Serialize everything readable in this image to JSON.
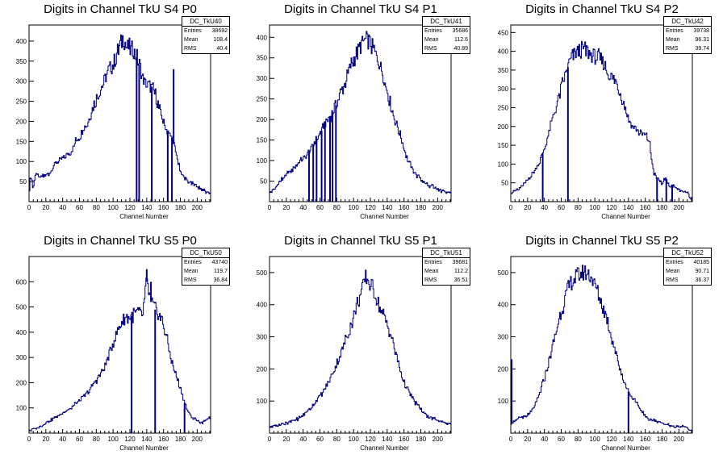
{
  "colors": {
    "histogram": "#000080",
    "axis": "#000000",
    "background": "#ffffff"
  },
  "chart_data": [
    {
      "type": "bar",
      "title": "Digits in Channel TkU S4 P0",
      "xlabel": "Channel Number",
      "ylabel": "",
      "xlim": [
        0,
        216
      ],
      "ylim": [
        0,
        440
      ],
      "xticks": [
        0,
        20,
        40,
        60,
        80,
        100,
        120,
        140,
        160,
        180,
        200
      ],
      "yticks": [
        50,
        100,
        150,
        200,
        250,
        300,
        350,
        400
      ],
      "stats": {
        "name": "DC_TkU40",
        "entries": "38692",
        "mean": "108.4",
        "rms": "40.4"
      },
      "spikes": [
        [
          128,
          0
        ],
        [
          146,
          0
        ],
        [
          165,
          0
        ],
        [
          170,
          0
        ],
        [
          172,
          330
        ],
        [
          131,
          0
        ]
      ],
      "profile": [
        [
          0,
          20
        ],
        [
          2,
          70
        ],
        [
          5,
          30
        ],
        [
          8,
          75
        ],
        [
          12,
          60
        ],
        [
          18,
          65
        ],
        [
          25,
          70
        ],
        [
          30,
          90
        ],
        [
          35,
          100
        ],
        [
          40,
          105
        ],
        [
          45,
          115
        ],
        [
          50,
          120
        ],
        [
          55,
          150
        ],
        [
          60,
          160
        ],
        [
          65,
          185
        ],
        [
          70,
          195
        ],
        [
          75,
          230
        ],
        [
          80,
          255
        ],
        [
          85,
          280
        ],
        [
          90,
          300
        ],
        [
          95,
          330
        ],
        [
          100,
          340
        ],
        [
          105,
          370
        ],
        [
          110,
          395
        ],
        [
          112,
          415
        ],
        [
          115,
          390
        ],
        [
          120,
          380
        ],
        [
          125,
          375
        ],
        [
          130,
          350
        ],
        [
          135,
          310
        ],
        [
          140,
          290
        ],
        [
          145,
          290
        ],
        [
          150,
          270
        ],
        [
          155,
          230
        ],
        [
          160,
          200
        ],
        [
          165,
          175
        ],
        [
          170,
          160
        ],
        [
          175,
          120
        ],
        [
          180,
          75
        ],
        [
          185,
          60
        ],
        [
          190,
          50
        ],
        [
          195,
          45
        ],
        [
          200,
          40
        ],
        [
          205,
          30
        ],
        [
          210,
          25
        ],
        [
          214,
          20
        ]
      ]
    },
    {
      "type": "bar",
      "title": "Digits in Channel TkU S4 P1",
      "xlabel": "Channel Number",
      "ylabel": "",
      "xlim": [
        0,
        216
      ],
      "ylim": [
        0,
        430
      ],
      "xticks": [
        0,
        20,
        40,
        60,
        80,
        100,
        120,
        140,
        160,
        180,
        200
      ],
      "yticks": [
        50,
        100,
        150,
        200,
        250,
        300,
        350,
        400
      ],
      "stats": {
        "name": "DC_TkU41",
        "entries": "35686",
        "mean": "112.6",
        "rms": "40.89"
      },
      "spikes": [
        [
          47,
          0
        ],
        [
          52,
          0
        ],
        [
          56,
          0
        ],
        [
          62,
          0
        ],
        [
          66,
          0
        ],
        [
          72,
          0
        ],
        [
          75,
          0
        ],
        [
          79,
          0
        ]
      ],
      "profile": [
        [
          0,
          20
        ],
        [
          5,
          30
        ],
        [
          10,
          40
        ],
        [
          15,
          55
        ],
        [
          20,
          65
        ],
        [
          25,
          75
        ],
        [
          30,
          85
        ],
        [
          35,
          95
        ],
        [
          40,
          105
        ],
        [
          45,
          115
        ],
        [
          50,
          130
        ],
        [
          55,
          150
        ],
        [
          60,
          165
        ],
        [
          65,
          185
        ],
        [
          70,
          200
        ],
        [
          75,
          215
        ],
        [
          80,
          240
        ],
        [
          85,
          265
        ],
        [
          90,
          290
        ],
        [
          95,
          320
        ],
        [
          100,
          345
        ],
        [
          105,
          365
        ],
        [
          110,
          385
        ],
        [
          115,
          395
        ],
        [
          120,
          385
        ],
        [
          125,
          365
        ],
        [
          130,
          340
        ],
        [
          135,
          310
        ],
        [
          140,
          270
        ],
        [
          145,
          230
        ],
        [
          150,
          195
        ],
        [
          155,
          165
        ],
        [
          160,
          130
        ],
        [
          165,
          100
        ],
        [
          170,
          80
        ],
        [
          175,
          65
        ],
        [
          180,
          55
        ],
        [
          185,
          45
        ],
        [
          190,
          40
        ],
        [
          195,
          35
        ],
        [
          200,
          30
        ],
        [
          205,
          25
        ],
        [
          210,
          25
        ],
        [
          214,
          20
        ]
      ]
    },
    {
      "type": "bar",
      "title": "Digits in Channel TkU S4 P2",
      "xlabel": "Channel Number",
      "ylabel": "",
      "xlim": [
        0,
        216
      ],
      "ylim": [
        0,
        470
      ],
      "xticks": [
        0,
        20,
        40,
        60,
        80,
        100,
        120,
        140,
        160,
        180,
        200
      ],
      "yticks": [
        50,
        100,
        150,
        200,
        250,
        300,
        350,
        400,
        450
      ],
      "stats": {
        "name": "DC_TkU42",
        "entries": "39738",
        "mean": "96.31",
        "rms": "39.74"
      },
      "spikes": [
        [
          38,
          0
        ],
        [
          68,
          0
        ],
        [
          174,
          0
        ],
        [
          185,
          0
        ],
        [
          192,
          0
        ]
      ],
      "profile": [
        [
          0,
          20
        ],
        [
          5,
          30
        ],
        [
          10,
          35
        ],
        [
          15,
          45
        ],
        [
          20,
          60
        ],
        [
          25,
          70
        ],
        [
          30,
          90
        ],
        [
          35,
          110
        ],
        [
          40,
          140
        ],
        [
          45,
          180
        ],
        [
          50,
          220
        ],
        [
          55,
          260
        ],
        [
          60,
          300
        ],
        [
          65,
          340
        ],
        [
          70,
          370
        ],
        [
          75,
          390
        ],
        [
          80,
          400
        ],
        [
          85,
          405
        ],
        [
          90,
          400
        ],
        [
          95,
          395
        ],
        [
          100,
          385
        ],
        [
          105,
          380
        ],
        [
          110,
          370
        ],
        [
          115,
          345
        ],
        [
          120,
          330
        ],
        [
          125,
          320
        ],
        [
          130,
          290
        ],
        [
          135,
          260
        ],
        [
          140,
          220
        ],
        [
          145,
          200
        ],
        [
          150,
          190
        ],
        [
          155,
          180
        ],
        [
          160,
          175
        ],
        [
          165,
          160
        ],
        [
          170,
          75
        ],
        [
          175,
          60
        ],
        [
          180,
          50
        ],
        [
          185,
          60
        ],
        [
          190,
          40
        ],
        [
          195,
          40
        ],
        [
          200,
          30
        ],
        [
          205,
          25
        ],
        [
          210,
          25
        ],
        [
          214,
          10
        ]
      ]
    },
    {
      "type": "bar",
      "title": "Digits in Channel TkU S5 P0",
      "xlabel": "Channel Number",
      "ylabel": "",
      "xlim": [
        0,
        216
      ],
      "ylim": [
        0,
        700
      ],
      "xticks": [
        0,
        20,
        40,
        60,
        80,
        100,
        120,
        140,
        160,
        180,
        200
      ],
      "yticks": [
        100,
        200,
        300,
        400,
        500,
        600
      ],
      "stats": {
        "name": "DC_TkU50",
        "entries": "43740",
        "mean": "119.7",
        "rms": "36.84"
      },
      "spikes": [
        [
          122,
          0
        ],
        [
          140,
          650
        ],
        [
          145,
          600
        ],
        [
          150,
          0
        ],
        [
          185,
          0
        ]
      ],
      "profile": [
        [
          0,
          10
        ],
        [
          10,
          20
        ],
        [
          20,
          40
        ],
        [
          30,
          60
        ],
        [
          40,
          80
        ],
        [
          50,
          100
        ],
        [
          60,
          130
        ],
        [
          70,
          160
        ],
        [
          80,
          210
        ],
        [
          90,
          260
        ],
        [
          95,
          310
        ],
        [
          100,
          360
        ],
        [
          105,
          400
        ],
        [
          110,
          440
        ],
        [
          115,
          460
        ],
        [
          120,
          460
        ],
        [
          125,
          470
        ],
        [
          130,
          480
        ],
        [
          135,
          460
        ],
        [
          140,
          600
        ],
        [
          145,
          520
        ],
        [
          150,
          490
        ],
        [
          155,
          470
        ],
        [
          160,
          430
        ],
        [
          165,
          360
        ],
        [
          170,
          280
        ],
        [
          175,
          230
        ],
        [
          180,
          180
        ],
        [
          185,
          120
        ],
        [
          190,
          80
        ],
        [
          195,
          60
        ],
        [
          200,
          50
        ],
        [
          205,
          40
        ],
        [
          210,
          50
        ],
        [
          214,
          60
        ]
      ]
    },
    {
      "type": "bar",
      "title": "Digits in Channel TkU S5 P1",
      "xlabel": "Channel Number",
      "ylabel": "",
      "xlim": [
        0,
        216
      ],
      "ylim": [
        0,
        550
      ],
      "xticks": [
        0,
        20,
        40,
        60,
        80,
        100,
        120,
        140,
        160,
        180,
        200
      ],
      "yticks": [
        100,
        200,
        300,
        400,
        500
      ],
      "stats": {
        "name": "DC_TkU51",
        "entries": "39681",
        "mean": "112.2",
        "rms": "36.51"
      },
      "spikes": [],
      "profile": [
        [
          0,
          20
        ],
        [
          10,
          25
        ],
        [
          20,
          30
        ],
        [
          30,
          40
        ],
        [
          40,
          55
        ],
        [
          50,
          80
        ],
        [
          60,
          115
        ],
        [
          70,
          155
        ],
        [
          80,
          215
        ],
        [
          90,
          285
        ],
        [
          100,
          360
        ],
        [
          105,
          410
        ],
        [
          110,
          440
        ],
        [
          115,
          490
        ],
        [
          120,
          460
        ],
        [
          125,
          440
        ],
        [
          130,
          400
        ],
        [
          135,
          370
        ],
        [
          140,
          340
        ],
        [
          145,
          300
        ],
        [
          150,
          250
        ],
        [
          155,
          200
        ],
        [
          160,
          160
        ],
        [
          165,
          130
        ],
        [
          170,
          110
        ],
        [
          175,
          90
        ],
        [
          180,
          75
        ],
        [
          185,
          60
        ],
        [
          190,
          50
        ],
        [
          195,
          45
        ],
        [
          200,
          40
        ],
        [
          205,
          35
        ],
        [
          210,
          30
        ],
        [
          214,
          30
        ]
      ]
    },
    {
      "type": "bar",
      "title": "Digits in Channel TkU S5 P2",
      "xlabel": "Channel Number",
      "ylabel": "",
      "xlim": [
        0,
        216
      ],
      "ylim": [
        0,
        550
      ],
      "xticks": [
        0,
        20,
        40,
        60,
        80,
        100,
        120,
        140,
        160,
        180,
        200
      ],
      "yticks": [
        100,
        200,
        300,
        400,
        500
      ],
      "stats": {
        "name": "DC_TkU52",
        "entries": "40185",
        "mean": "90.71",
        "rms": "36.37"
      },
      "spikes": [
        [
          1,
          230
        ],
        [
          140,
          0
        ]
      ],
      "profile": [
        [
          0,
          30
        ],
        [
          5,
          40
        ],
        [
          10,
          45
        ],
        [
          15,
          50
        ],
        [
          20,
          55
        ],
        [
          25,
          70
        ],
        [
          30,
          90
        ],
        [
          35,
          130
        ],
        [
          40,
          170
        ],
        [
          45,
          220
        ],
        [
          50,
          270
        ],
        [
          55,
          330
        ],
        [
          60,
          380
        ],
        [
          65,
          420
        ],
        [
          70,
          460
        ],
        [
          75,
          480
        ],
        [
          80,
          490
        ],
        [
          85,
          500
        ],
        [
          90,
          500
        ],
        [
          95,
          490
        ],
        [
          100,
          460
        ],
        [
          105,
          430
        ],
        [
          110,
          390
        ],
        [
          115,
          350
        ],
        [
          120,
          300
        ],
        [
          125,
          250
        ],
        [
          130,
          200
        ],
        [
          135,
          160
        ],
        [
          140,
          130
        ],
        [
          145,
          110
        ],
        [
          150,
          90
        ],
        [
          155,
          70
        ],
        [
          160,
          55
        ],
        [
          165,
          45
        ],
        [
          170,
          40
        ],
        [
          175,
          35
        ],
        [
          180,
          30
        ],
        [
          185,
          25
        ],
        [
          190,
          25
        ],
        [
          195,
          20
        ],
        [
          200,
          20
        ],
        [
          205,
          20
        ],
        [
          210,
          15
        ],
        [
          214,
          10
        ]
      ]
    }
  ],
  "stat_labels": {
    "entries": "Entries",
    "mean": "Mean",
    "rms": "RMS"
  }
}
